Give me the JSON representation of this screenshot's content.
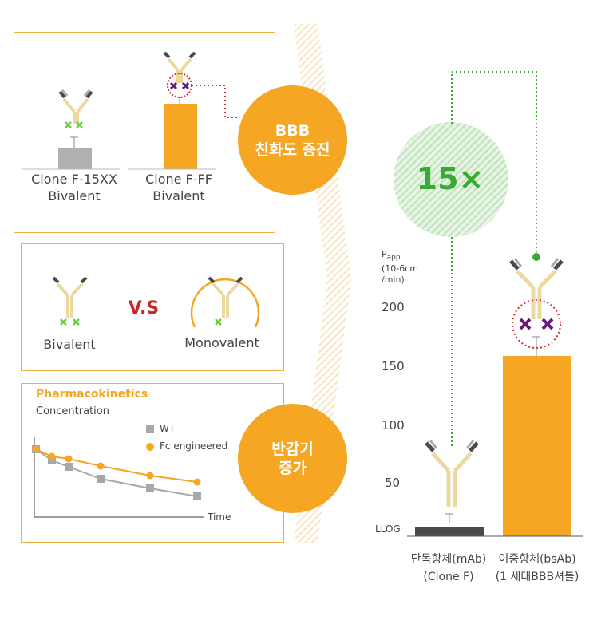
{
  "panel_top": {
    "left_label": [
      "Clone F-15XX",
      "Bivalent"
    ],
    "right_label": [
      "Clone F-FF",
      "Bivalent"
    ]
  },
  "panel_mid": {
    "left_label": "Bivalent",
    "vs": "V.S",
    "right_label": "Monovalent"
  },
  "panel_pk": {
    "title": "Pharmacokinetics",
    "ylabel": "Concentration",
    "xlabel": "Time",
    "legend": [
      {
        "name": "WT",
        "color": "#a8a8a8"
      },
      {
        "name": "Fc engineered",
        "color": "#f5a623"
      }
    ]
  },
  "circle_bbb": {
    "line1": "BBB",
    "line2": "친화도 증진"
  },
  "circle_halflife": {
    "line1": "반감기",
    "line2": "증가"
  },
  "bubble": {
    "text": "15×"
  },
  "chart": {
    "yaxis_label": [
      "P",
      "app",
      "(10-6cm",
      "/min)"
    ],
    "ticks": [
      "200",
      "150",
      "100",
      "50"
    ],
    "llog": "LLOG",
    "bars": [
      {
        "label_line1": "단독항체(mAb)",
        "label_line2": "(Clone F)"
      },
      {
        "label_line1": "이중항체(bsAb)",
        "label_line2": "(1 세대BBB셔틀)"
      }
    ]
  },
  "chart_data": {
    "type": "bar",
    "categories": [
      "단독항체(mAb) (Clone F)",
      "이중항체(bsAb) (1 세대BBB셔틀)"
    ],
    "values": [
      8,
      158
    ],
    "ylabel": "Papp (10-6cm /min)",
    "yticks": [
      "LLOG",
      "50",
      "100",
      "150",
      "200"
    ],
    "ylim": [
      0,
      200
    ],
    "annotation": "15×"
  },
  "colors": {
    "orange": "#f5a623",
    "green": "#3aaa35",
    "purple": "#6a1b7a",
    "dark": "#4a4a4a",
    "gray": "#a8a8a8",
    "red": "#d32f2f",
    "cream": "#ecd9a0"
  }
}
